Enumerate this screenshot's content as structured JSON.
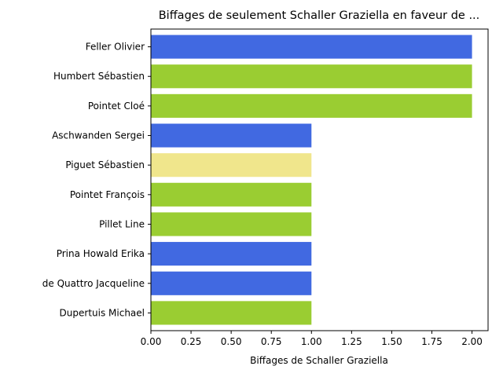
{
  "chart_data": {
    "type": "bar",
    "orientation": "horizontal",
    "title": "Biffages de seulement Schaller Graziella en faveur de ...",
    "xlabel": "Biffages de Schaller Graziella",
    "ylabel": "",
    "xlim": [
      0,
      2.1
    ],
    "xticks": [
      "0.00",
      "0.25",
      "0.50",
      "0.75",
      "1.00",
      "1.25",
      "1.50",
      "1.75",
      "2.00"
    ],
    "grid": false,
    "categories": [
      "Feller Olivier",
      "Humbert Sébastien",
      "Pointet Cloé",
      "Aschwanden Sergei",
      "Piguet Sébastien",
      "Pointet François",
      "Pillet Line",
      "Prina Howald Erika",
      "de Quattro Jacqueline",
      "Dupertuis Michael"
    ],
    "values": [
      2,
      2,
      2,
      1,
      1,
      1,
      1,
      1,
      1,
      1
    ],
    "bar_colors": [
      "#4169e1",
      "#9acd32",
      "#9acd32",
      "#4169e1",
      "#f0e68c",
      "#9acd32",
      "#9acd32",
      "#4169e1",
      "#4169e1",
      "#9acd32"
    ]
  }
}
